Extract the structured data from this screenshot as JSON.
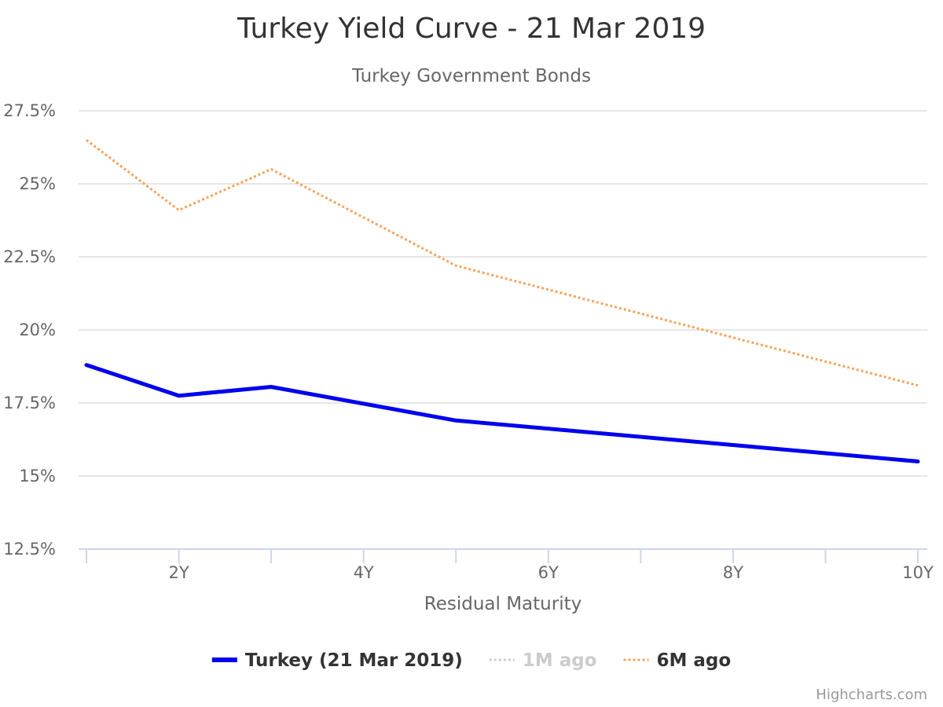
{
  "chart_data": {
    "type": "line",
    "title": "Turkey Yield Curve - 21 Mar 2019",
    "subtitle": "Turkey Government Bonds",
    "xlabel": "Residual Maturity",
    "ylabel": "",
    "x_min_years": 1,
    "x_max_years": 10,
    "x_tick_labels": [
      {
        "value": 2,
        "label": "2Y"
      },
      {
        "value": 4,
        "label": "4Y"
      },
      {
        "value": 6,
        "label": "6Y"
      },
      {
        "value": 8,
        "label": "8Y"
      },
      {
        "value": 10,
        "label": "10Y"
      }
    ],
    "ylim": [
      12.5,
      27.5
    ],
    "y_tick_labels": [
      {
        "value": 12.5,
        "label": "12.5%"
      },
      {
        "value": 15,
        "label": "15%"
      },
      {
        "value": 17.5,
        "label": "17.5%"
      },
      {
        "value": 20,
        "label": "20%"
      },
      {
        "value": 22.5,
        "label": "22.5%"
      },
      {
        "value": 25,
        "label": "25%"
      },
      {
        "value": 27.5,
        "label": "27.5%"
      }
    ],
    "grid": true,
    "legend_position": "bottom-center",
    "series": [
      {
        "name": "Turkey (21 Mar 2019)",
        "color": "#0000ee",
        "style": "solid",
        "visible": true,
        "points": [
          [
            1,
            18.8
          ],
          [
            2,
            17.75
          ],
          [
            3,
            18.05
          ],
          [
            5,
            16.9
          ],
          [
            10,
            15.5
          ]
        ]
      },
      {
        "name": "1M ago",
        "color": "#cccccc",
        "style": "dotted",
        "visible": false,
        "points": []
      },
      {
        "name": "6M ago",
        "color": "#f7a35c",
        "style": "dotted",
        "visible": true,
        "points": [
          [
            1,
            26.5
          ],
          [
            2,
            24.1
          ],
          [
            3,
            25.5
          ],
          [
            5,
            22.2
          ],
          [
            10,
            18.1
          ]
        ]
      }
    ]
  },
  "credits": "Highcharts.com"
}
